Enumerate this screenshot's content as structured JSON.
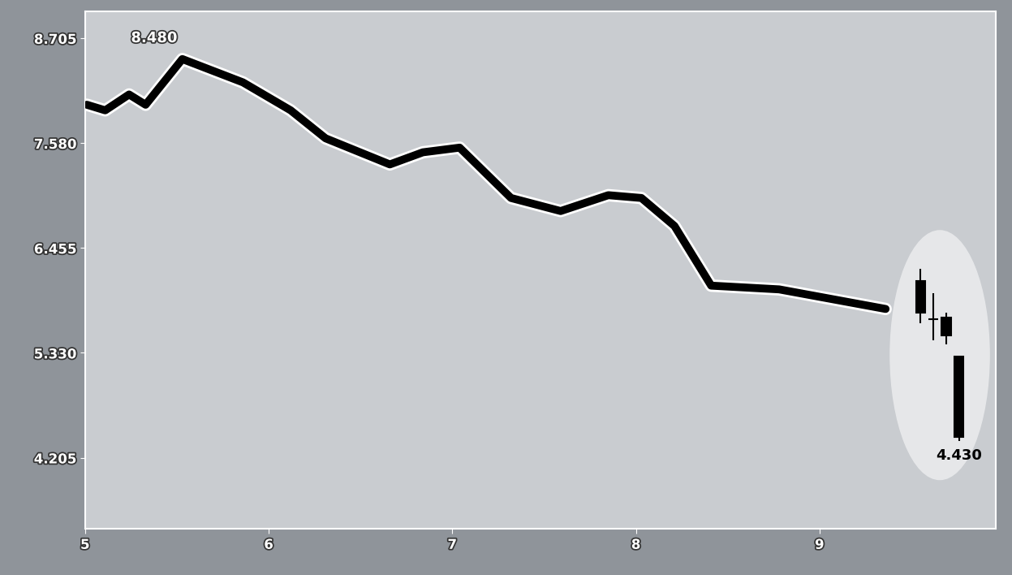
{
  "chart_data": {
    "type": "line",
    "x": [
      5.01,
      5.11,
      5.24,
      5.33,
      5.53,
      5.86,
      6.12,
      6.31,
      6.66,
      6.84,
      7.04,
      7.32,
      7.59,
      7.85,
      8.03,
      8.21,
      8.41,
      8.78,
      9.36
    ],
    "values": [
      7.99,
      7.93,
      8.1,
      7.99,
      8.48,
      8.23,
      7.93,
      7.63,
      7.35,
      7.48,
      7.53,
      6.99,
      6.85,
      7.02,
      6.99,
      6.69,
      6.05,
      6.01,
      5.8
    ],
    "color": "#000000",
    "candles": {
      "x": [
        9.55,
        9.62,
        9.69,
        9.76
      ],
      "open": [
        6.1,
        5.69,
        5.71,
        5.29
      ],
      "high": [
        6.23,
        5.97,
        5.76,
        5.29
      ],
      "low": [
        5.65,
        5.46,
        5.42,
        4.38
      ],
      "close": [
        5.76,
        5.69,
        5.52,
        4.43
      ]
    },
    "annotations": [
      {
        "text": "8.480",
        "x": 5.53,
        "y": 8.48
      },
      {
        "text": "4.430",
        "x": 9.76,
        "y": 4.43
      }
    ],
    "xlim": [
      5,
      9.96
    ],
    "ylim": [
      3.44,
      8.99
    ],
    "xticks": [
      5,
      6,
      7,
      8,
      9
    ],
    "yticks": [
      4.205,
      {
        "value": 5.33,
        "label": "5.330"
      },
      6.455,
      {
        "value": 7.58,
        "label": "7.580"
      },
      8.705
    ],
    "grid": false
  }
}
